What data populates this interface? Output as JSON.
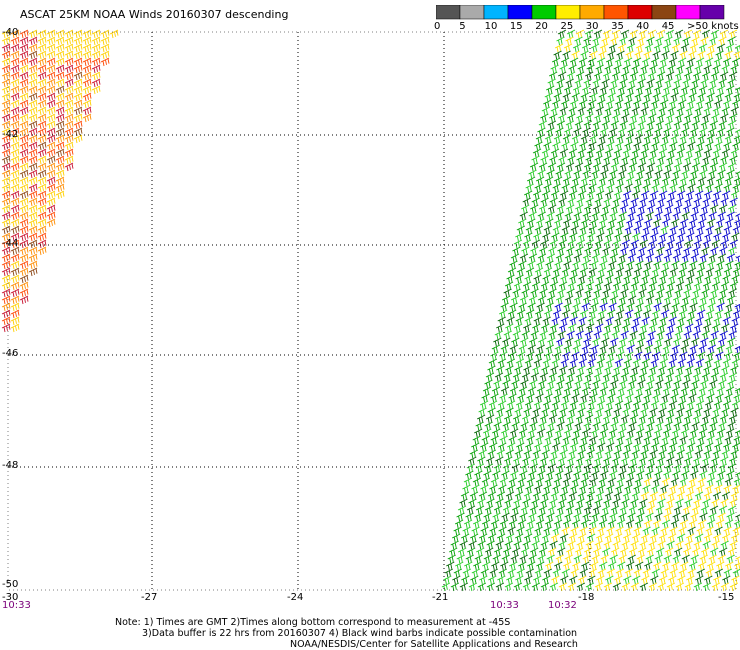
{
  "title": "ASCAT 25KM NOAA Winds 20160307 descending",
  "colorbar": {
    "ticks": [
      "0",
      "5",
      "10",
      "15",
      "20",
      "25",
      "30",
      "35",
      "40",
      "45",
      ">50 knots"
    ],
    "colors": [
      "#555555",
      "#aaaaaa",
      "#00b4ff",
      "#0000ff",
      "#00cc00",
      "#ffee00",
      "#ffaa00",
      "#ff5500",
      "#dd0000",
      "#8b4513",
      "#ff00ff",
      "#6600aa"
    ]
  },
  "axes": {
    "lon_labels": [
      "-30",
      "-27",
      "-24",
      "-21",
      "-18",
      "-15"
    ],
    "lat_labels": [
      "-40",
      "-42",
      "-44",
      "-46",
      "-48",
      "-50"
    ]
  },
  "times": {
    "left": "10:33",
    "right_a": "10:33",
    "right_b": "10:32"
  },
  "notes": {
    "line1": "Note: 1) Times are GMT 2)Times along bottom correspond to measurement at -45S",
    "line2": "3)Data buffer is 22 hrs from 20160307 4) Black wind barbs indicate possible contamination",
    "line3": "NOAA/NESDIS/Center for Satellite Applications and Research"
  }
}
